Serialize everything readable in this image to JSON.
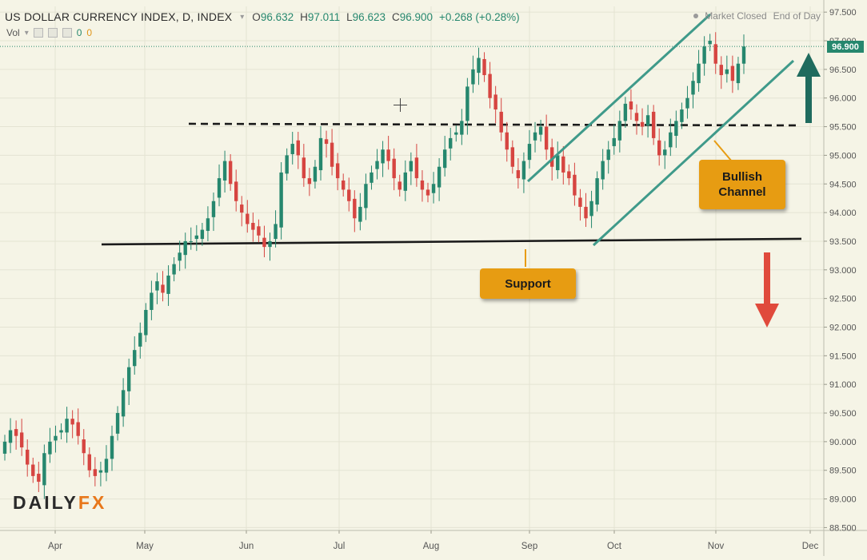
{
  "header": {
    "title": "US DOLLAR CURRENCY INDEX, D, INDEX",
    "open_label": "O",
    "open": "96.632",
    "high_label": "H",
    "high": "97.011",
    "low_label": "L",
    "low": "96.623",
    "close_label": "C",
    "close": "96.900",
    "change": "+0.268 (+0.28%)"
  },
  "status": {
    "market": "Market Closed",
    "eod": "End of Day"
  },
  "volume": {
    "label": "Vol",
    "value_green": "0",
    "value_orange": "0"
  },
  "logo": {
    "part1": "DAILY",
    "part2": "FX"
  },
  "annotations": {
    "support": "Support",
    "bullish_line1": "Bullish",
    "bullish_line2": "Channel"
  },
  "last_price_badge": "96.900",
  "colors": {
    "background": "#f5f4e6",
    "up": "#26876e",
    "down": "#d64541",
    "callout": "#e79c12",
    "arrow_up": "#1f6b5e",
    "arrow_down": "#e04a3c",
    "channel": "#3f9a8a"
  },
  "chart_data": {
    "type": "candlestick",
    "title": "US DOLLAR CURRENCY INDEX, D, INDEX",
    "x_labels": [
      "Apr",
      "May",
      "Jun",
      "Jul",
      "Aug",
      "Sep",
      "Oct",
      "Nov",
      "Dec"
    ],
    "y_ticks": [
      "97.500",
      "97.000",
      "96.500",
      "96.000",
      "95.500",
      "95.000",
      "94.500",
      "94.000",
      "93.500",
      "93.000",
      "92.500",
      "92.000",
      "91.500",
      "91.000",
      "90.500",
      "90.000",
      "89.500",
      "89.000",
      "88.500"
    ],
    "ylim": [
      88.45,
      97.6
    ],
    "grid": true,
    "levels": {
      "support": 93.5,
      "resistance_dashed": 95.55
    },
    "channel": {
      "lower": [
        [
          "Sep",
          94.5
        ],
        [
          "Nov",
          96.6
        ]
      ],
      "upper": [
        [
          "Sep",
          94.5
        ],
        [
          "Nov",
          97.4
        ]
      ]
    },
    "candles_close_path": [
      90.0,
      90.2,
      90.1,
      89.9,
      89.6,
      89.4,
      89.3,
      89.8,
      90.0,
      90.1,
      90.2,
      90.4,
      90.3,
      90.1,
      89.8,
      89.5,
      89.4,
      89.5,
      89.7,
      90.1,
      90.5,
      90.9,
      91.3,
      91.6,
      91.9,
      92.3,
      92.6,
      92.8,
      92.6,
      92.9,
      93.1,
      93.3,
      93.5,
      93.5,
      93.6,
      93.7,
      93.9,
      94.2,
      94.6,
      94.9,
      94.5,
      94.2,
      94.0,
      93.8,
      93.7,
      93.6,
      93.4,
      93.5,
      93.8,
      94.7,
      95.0,
      95.2,
      95.0,
      94.6,
      94.5,
      94.8,
      95.3,
      95.2,
      94.8,
      94.6,
      94.4,
      94.2,
      93.9,
      94.1,
      94.5,
      94.7,
      94.9,
      95.1,
      94.9,
      94.6,
      94.4,
      94.7,
      94.9,
      94.6,
      94.4,
      94.3,
      94.5,
      94.8,
      95.1,
      95.3,
      95.4,
      95.6,
      96.2,
      96.5,
      96.7,
      96.4,
      96.0,
      95.8,
      95.4,
      95.1,
      94.8,
      94.6,
      94.9,
      95.2,
      95.4,
      95.5,
      95.1,
      94.8,
      95.0,
      94.7,
      94.6,
      94.3,
      94.1,
      93.9,
      94.2,
      94.6,
      94.9,
      95.1,
      95.3,
      95.6,
      95.9,
      95.8,
      95.6,
      95.5,
      95.7,
      95.3,
      95.0,
      95.1,
      95.4,
      95.6,
      95.8,
      96.0,
      96.3,
      96.6,
      96.9,
      97.0,
      96.6,
      96.4,
      96.5,
      96.3,
      96.6,
      96.9
    ]
  }
}
